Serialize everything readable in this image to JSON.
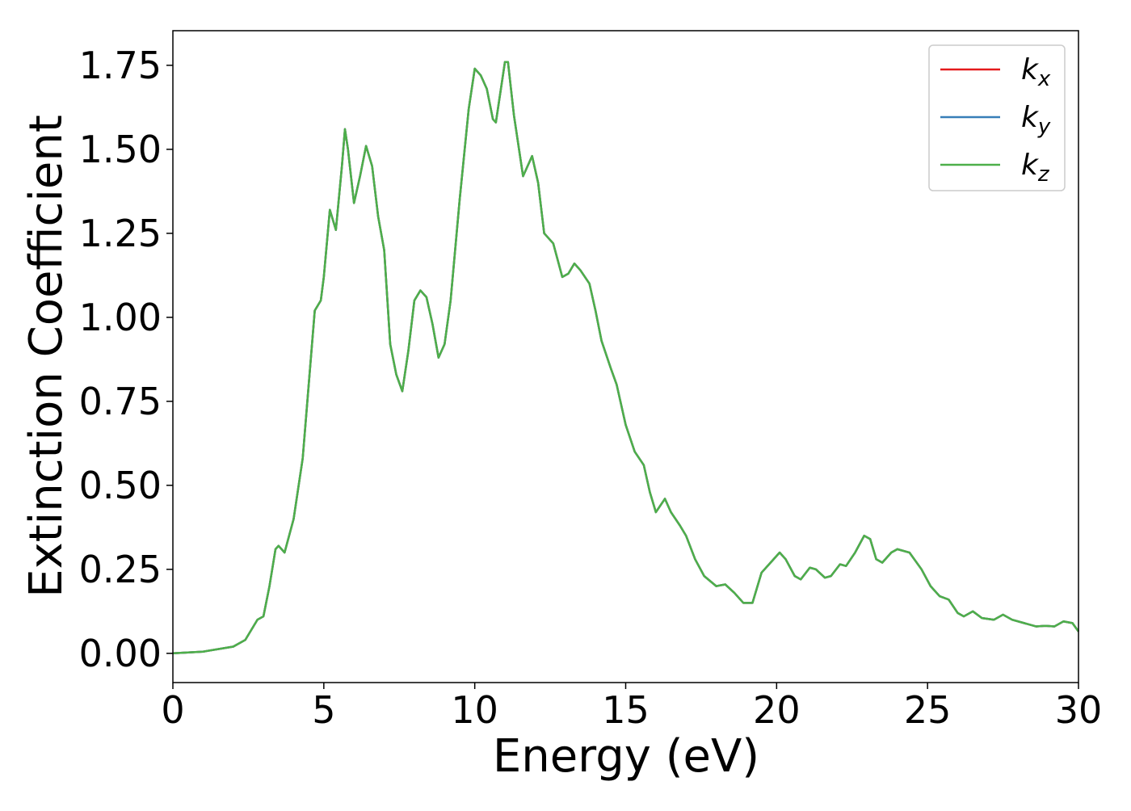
{
  "chart_data": {
    "type": "line",
    "xlabel": "Energy (eV)",
    "ylabel": "Extinction Coefficient",
    "x": [
      0,
      1,
      2,
      2.4,
      2.8,
      3.0,
      3.2,
      3.4,
      3.5,
      3.7,
      4.0,
      4.3,
      4.5,
      4.7,
      4.9,
      5.0,
      5.2,
      5.4,
      5.6,
      5.7,
      5.8,
      6.0,
      6.2,
      6.4,
      6.6,
      6.8,
      7.0,
      7.2,
      7.4,
      7.6,
      7.8,
      8.0,
      8.2,
      8.4,
      8.6,
      8.8,
      9.0,
      9.2,
      9.5,
      9.8,
      10.0,
      10.2,
      10.4,
      10.6,
      10.7,
      10.9,
      11.0,
      11.1,
      11.3,
      11.6,
      11.8,
      11.9,
      12.1,
      12.3,
      12.5,
      12.6,
      12.9,
      13.1,
      13.3,
      13.5,
      13.8,
      14.0,
      14.2,
      14.5,
      14.7,
      15.0,
      15.3,
      15.6,
      15.8,
      16.0,
      16.3,
      16.5,
      16.8,
      17.0,
      17.3,
      17.6,
      18.0,
      18.3,
      18.6,
      18.9,
      19.2,
      19.5,
      19.8,
      20.1,
      20.3,
      20.6,
      20.8,
      21.1,
      21.3,
      21.6,
      21.8,
      22.1,
      22.3,
      22.6,
      22.9,
      23.1,
      23.3,
      23.5,
      23.8,
      24.0,
      24.4,
      24.8,
      25.1,
      25.4,
      25.7,
      26.0,
      26.2,
      26.5,
      26.8,
      27.2,
      27.5,
      27.8,
      28.2,
      28.6,
      28.9,
      29.2,
      29.5,
      29.8,
      30.0
    ],
    "series": [
      {
        "name": "kx",
        "color": "#e41a1c",
        "values": [
          0,
          0.005,
          0.02,
          0.04,
          0.1,
          0.11,
          0.2,
          0.31,
          0.32,
          0.3,
          0.4,
          0.58,
          0.8,
          1.02,
          1.05,
          1.12,
          1.32,
          1.26,
          1.45,
          1.56,
          1.5,
          1.34,
          1.42,
          1.51,
          1.45,
          1.3,
          1.2,
          0.92,
          0.83,
          0.78,
          0.9,
          1.05,
          1.08,
          1.06,
          0.98,
          0.88,
          0.92,
          1.05,
          1.35,
          1.62,
          1.74,
          1.72,
          1.68,
          1.59,
          1.58,
          1.7,
          1.76,
          1.76,
          1.6,
          1.42,
          1.46,
          1.48,
          1.4,
          1.25,
          1.23,
          1.22,
          1.12,
          1.13,
          1.16,
          1.14,
          1.1,
          1.02,
          0.93,
          0.85,
          0.8,
          0.68,
          0.6,
          0.56,
          0.48,
          0.42,
          0.46,
          0.42,
          0.38,
          0.35,
          0.28,
          0.23,
          0.2,
          0.205,
          0.18,
          0.15,
          0.15,
          0.24,
          0.27,
          0.3,
          0.28,
          0.23,
          0.22,
          0.255,
          0.25,
          0.225,
          0.23,
          0.265,
          0.26,
          0.3,
          0.35,
          0.34,
          0.28,
          0.27,
          0.3,
          0.31,
          0.3,
          0.25,
          0.2,
          0.17,
          0.16,
          0.12,
          0.11,
          0.125,
          0.105,
          0.1,
          0.115,
          0.1,
          0.09,
          0.08,
          0.082,
          0.08,
          0.095,
          0.09,
          0.065
        ]
      },
      {
        "name": "ky",
        "color": "#377eb8",
        "values": [
          0,
          0.005,
          0.02,
          0.04,
          0.1,
          0.11,
          0.2,
          0.31,
          0.32,
          0.3,
          0.4,
          0.58,
          0.8,
          1.02,
          1.05,
          1.12,
          1.32,
          1.26,
          1.45,
          1.56,
          1.5,
          1.34,
          1.42,
          1.51,
          1.45,
          1.3,
          1.2,
          0.92,
          0.83,
          0.78,
          0.9,
          1.05,
          1.08,
          1.06,
          0.98,
          0.88,
          0.92,
          1.05,
          1.35,
          1.62,
          1.74,
          1.72,
          1.68,
          1.59,
          1.58,
          1.7,
          1.76,
          1.76,
          1.6,
          1.42,
          1.46,
          1.48,
          1.4,
          1.25,
          1.23,
          1.22,
          1.12,
          1.13,
          1.16,
          1.14,
          1.1,
          1.02,
          0.93,
          0.85,
          0.8,
          0.68,
          0.6,
          0.56,
          0.48,
          0.42,
          0.46,
          0.42,
          0.38,
          0.35,
          0.28,
          0.23,
          0.2,
          0.205,
          0.18,
          0.15,
          0.15,
          0.24,
          0.27,
          0.3,
          0.28,
          0.23,
          0.22,
          0.255,
          0.25,
          0.225,
          0.23,
          0.265,
          0.26,
          0.3,
          0.35,
          0.34,
          0.28,
          0.27,
          0.3,
          0.31,
          0.3,
          0.25,
          0.2,
          0.17,
          0.16,
          0.12,
          0.11,
          0.125,
          0.105,
          0.1,
          0.115,
          0.1,
          0.09,
          0.08,
          0.082,
          0.08,
          0.095,
          0.09,
          0.065
        ]
      },
      {
        "name": "kz",
        "color": "#4daf4a",
        "values": [
          0,
          0.005,
          0.02,
          0.04,
          0.1,
          0.11,
          0.2,
          0.31,
          0.32,
          0.3,
          0.4,
          0.58,
          0.8,
          1.02,
          1.05,
          1.12,
          1.32,
          1.26,
          1.45,
          1.56,
          1.5,
          1.34,
          1.42,
          1.51,
          1.45,
          1.3,
          1.2,
          0.92,
          0.83,
          0.78,
          0.9,
          1.05,
          1.08,
          1.06,
          0.98,
          0.88,
          0.92,
          1.05,
          1.35,
          1.62,
          1.74,
          1.72,
          1.68,
          1.59,
          1.58,
          1.7,
          1.76,
          1.76,
          1.6,
          1.42,
          1.46,
          1.48,
          1.4,
          1.25,
          1.23,
          1.22,
          1.12,
          1.13,
          1.16,
          1.14,
          1.1,
          1.02,
          0.93,
          0.85,
          0.8,
          0.68,
          0.6,
          0.56,
          0.48,
          0.42,
          0.46,
          0.42,
          0.38,
          0.35,
          0.28,
          0.23,
          0.2,
          0.205,
          0.18,
          0.15,
          0.15,
          0.24,
          0.27,
          0.3,
          0.28,
          0.23,
          0.22,
          0.255,
          0.25,
          0.225,
          0.23,
          0.265,
          0.26,
          0.3,
          0.35,
          0.34,
          0.28,
          0.27,
          0.3,
          0.31,
          0.3,
          0.25,
          0.2,
          0.17,
          0.16,
          0.12,
          0.11,
          0.125,
          0.105,
          0.1,
          0.115,
          0.1,
          0.09,
          0.08,
          0.082,
          0.08,
          0.095,
          0.09,
          0.065
        ]
      }
    ],
    "xlim": [
      0,
      30
    ],
    "xticks": [
      0,
      5,
      10,
      15,
      20,
      25,
      30
    ],
    "ylim": [
      -0.087,
      1.853
    ],
    "yticks": [
      {
        "value": 0,
        "label": "0.00"
      },
      0.25,
      {
        "value": 0.5,
        "label": "0.50"
      },
      0.75,
      {
        "value": 1,
        "label": "1.00"
      },
      1.25,
      {
        "value": 1.5,
        "label": "1.50"
      },
      1.75
    ],
    "legend": "upper right",
    "grid": false
  }
}
